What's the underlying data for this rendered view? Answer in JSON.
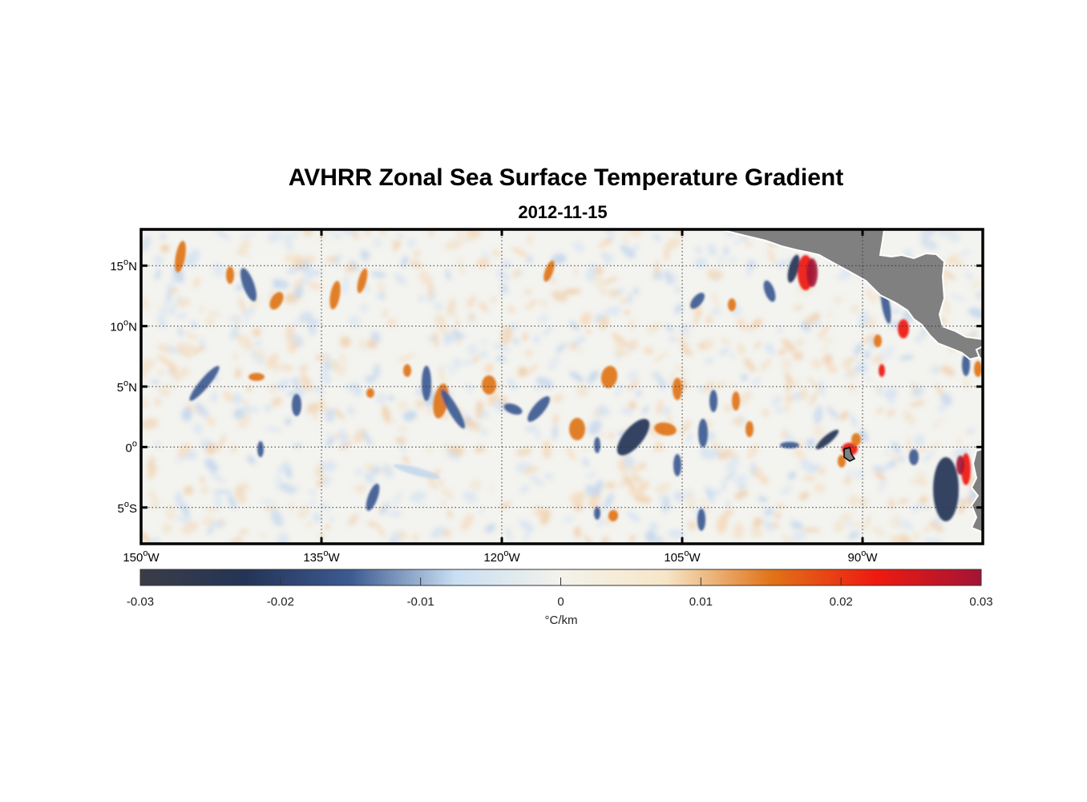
{
  "title": "AVHRR Zonal Sea Surface Temperature Gradient",
  "subtitle": "2012-11-15",
  "map": {
    "lon_range": [
      -150,
      -80
    ],
    "lat_range": [
      -8,
      18
    ],
    "parallels": [
      {
        "lat": 15,
        "label": "15",
        "hemi": "N"
      },
      {
        "lat": 10,
        "label": "10",
        "hemi": "N"
      },
      {
        "lat": 5,
        "label": "5",
        "hemi": "N"
      },
      {
        "lat": 0,
        "label": "0",
        "hemi": ""
      },
      {
        "lat": -5,
        "label": "5",
        "hemi": "S"
      }
    ],
    "meridians": [
      {
        "lon": -150,
        "label": "150",
        "hemi": "W"
      },
      {
        "lon": -135,
        "label": "135",
        "hemi": "W"
      },
      {
        "lon": -120,
        "label": "120",
        "hemi": "W"
      },
      {
        "lon": -105,
        "label": "105",
        "hemi": "W"
      },
      {
        "lon": -90,
        "label": "90",
        "hemi": "W"
      }
    ],
    "land_color": "#808080",
    "grid_style": "dotted"
  },
  "colorbar": {
    "ticks": [
      "-0.03",
      "-0.02",
      "-0.01",
      "0",
      "0.01",
      "0.02",
      "0.03"
    ],
    "range": [
      -0.03,
      0.03
    ],
    "unit_label": "°C/km",
    "colors": [
      "#3a3d46",
      "#243456",
      "#3d5a91",
      "#c9dff2",
      "#f4f2ec",
      "#f6e6c8",
      "#e07418",
      "#ee1a10",
      "#a31436"
    ]
  }
}
